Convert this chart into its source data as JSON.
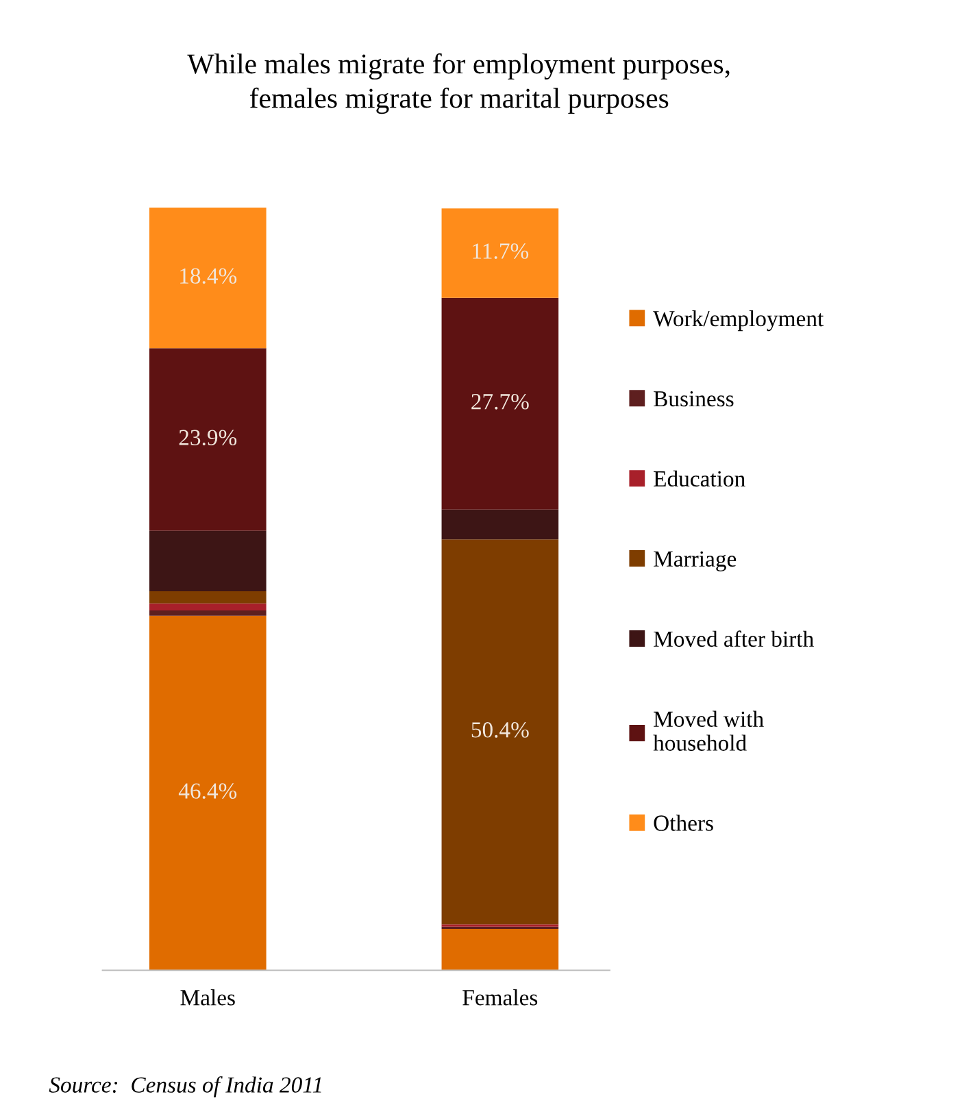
{
  "chart_data": {
    "type": "bar",
    "stacked": true,
    "title": "While males migrate for employment purposes,\nfemales migrate for marital purposes",
    "categories": [
      "Males",
      "Females"
    ],
    "ylim": [
      0,
      100
    ],
    "tick_labels": "x",
    "grid": false,
    "legend": "right",
    "series": [
      {
        "name": "Work/employment",
        "color": "#e06c00",
        "values": [
          46.4,
          5.4
        ],
        "value_labels": [
          "46.4%",
          null
        ]
      },
      {
        "name": "Business",
        "color": "#5e1f1f",
        "values": [
          0.7,
          0.3
        ],
        "value_labels": [
          null,
          null
        ]
      },
      {
        "name": "Education",
        "color": "#a8202a",
        "values": [
          0.9,
          0.3
        ],
        "value_labels": [
          null,
          null
        ]
      },
      {
        "name": "Marriage",
        "color": "#7e3d00",
        "values": [
          1.6,
          50.4
        ],
        "value_labels": [
          null,
          "50.4%"
        ]
      },
      {
        "name": "Moved after birth",
        "color": "#3d1515",
        "values": [
          7.9,
          3.9
        ],
        "value_labels": [
          null,
          null
        ]
      },
      {
        "name": "Moved with\nhousehold",
        "color": "#5e1212",
        "values": [
          23.9,
          27.7
        ],
        "value_labels": [
          "23.9%",
          "27.7%"
        ]
      },
      {
        "name": "Others",
        "color": "#ff8c1a",
        "values": [
          18.4,
          11.7
        ],
        "value_labels": [
          "18.4%",
          "11.7%"
        ]
      }
    ],
    "annotations": [
      "Source:  Census of India 2011"
    ]
  }
}
